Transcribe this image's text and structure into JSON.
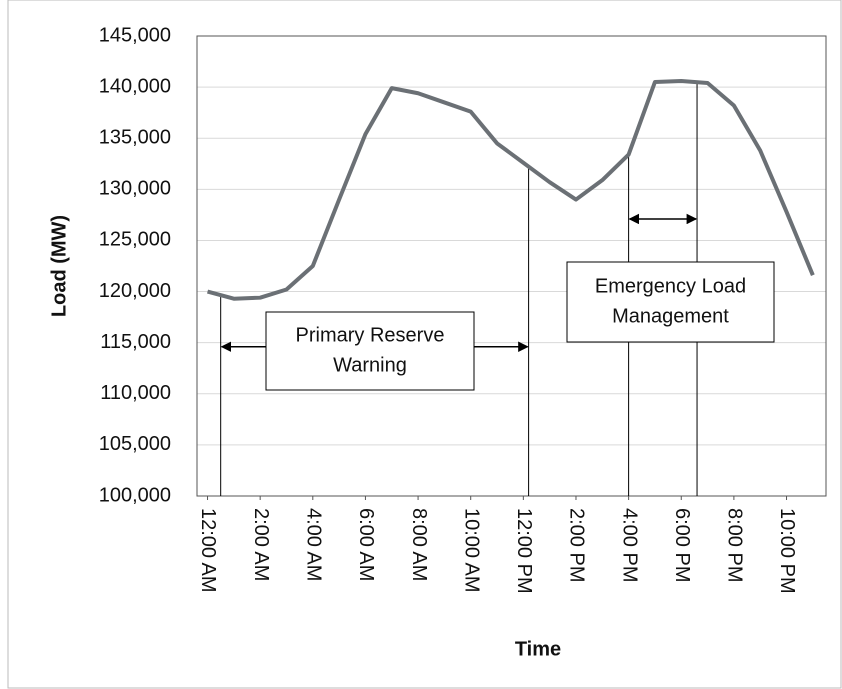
{
  "chart_data": {
    "type": "line",
    "x_label": "Time",
    "y_label": "Load (MW)",
    "x": [
      0,
      1,
      2,
      3,
      4,
      5,
      6,
      7,
      8,
      9,
      10,
      11,
      12,
      13,
      14,
      15,
      16,
      17,
      18,
      19,
      20,
      21,
      22,
      23
    ],
    "series": [
      {
        "name": "Load",
        "color": "#6b7075",
        "values": [
          120000,
          119300,
          119400,
          120200,
          122500,
          129000,
          135400,
          139900,
          139400,
          138500,
          137600,
          134500,
          132600,
          130700,
          129000,
          130900,
          133400,
          140500,
          140600,
          140400,
          138200,
          133800,
          127800,
          121600
        ]
      }
    ],
    "xlim": [
      -0.4,
      23.5
    ],
    "xticks": [
      {
        "value": 0,
        "label": "12:00 AM"
      },
      {
        "value": 2,
        "label": "2:00 AM"
      },
      {
        "value": 4,
        "label": "4:00 AM"
      },
      {
        "value": 6,
        "label": "6:00 AM"
      },
      {
        "value": 8,
        "label": "8:00 AM"
      },
      {
        "value": 10,
        "label": "10:00 AM"
      },
      {
        "value": 12,
        "label": "12:00 PM"
      },
      {
        "value": 14,
        "label": "2:00 PM"
      },
      {
        "value": 16,
        "label": "4:00 PM"
      },
      {
        "value": 18,
        "label": "6:00 PM"
      },
      {
        "value": 20,
        "label": "8:00 PM"
      },
      {
        "value": 22,
        "label": "10:00 PM"
      }
    ],
    "ylim": [
      100000,
      145000
    ],
    "yticks": [
      {
        "value": 100000,
        "label": "100,000"
      },
      {
        "value": 105000,
        "label": "105,000"
      },
      {
        "value": 110000,
        "label": "110,000"
      },
      {
        "value": 115000,
        "label": "115,000"
      },
      {
        "value": 120000,
        "label": "120,000"
      },
      {
        "value": 125000,
        "label": "125,000"
      },
      {
        "value": 130000,
        "label": "130,000"
      },
      {
        "value": 135000,
        "label": "135,000"
      },
      {
        "value": 140000,
        "label": "140,000"
      },
      {
        "value": 145000,
        "label": "145,000"
      }
    ],
    "grid": true,
    "annotations": [
      {
        "lines": [
          "Primary Reserve",
          "Warning"
        ],
        "x_start": 0.5,
        "x_end": 12.2,
        "y": 114600
      },
      {
        "lines": [
          "Emergency Load",
          "Management"
        ],
        "x_start": 16,
        "x_end": 18.6,
        "y": 127100
      }
    ]
  }
}
